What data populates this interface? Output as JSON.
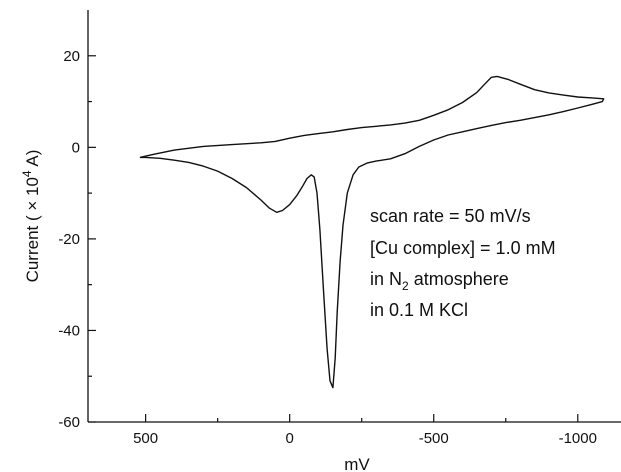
{
  "chart_data": {
    "type": "line",
    "title": "",
    "xlabel": "mV",
    "ylabel": {
      "prefix": "Current ( × 10",
      "exponent": "4",
      "suffix": " A)"
    },
    "xlim": [
      700,
      -1150
    ],
    "ylim": [
      -60,
      30
    ],
    "x_reversed": true,
    "x_ticks": [
      500,
      0,
      -500,
      -1000
    ],
    "x_minor_ticks": [
      750,
      250,
      -250,
      -750
    ],
    "y_ticks": [
      20,
      0,
      -20,
      -40,
      -60
    ],
    "y_minor_ticks": [
      10,
      -10,
      -30,
      -50
    ],
    "grid": false,
    "line_color": "#111111",
    "series": [
      {
        "points": [
          [
            520,
            -2.2
          ],
          [
            470,
            -1.5
          ],
          [
            400,
            -0.6
          ],
          [
            300,
            0.2
          ],
          [
            200,
            0.6
          ],
          [
            100,
            1.0
          ],
          [
            50,
            1.3
          ],
          [
            0,
            2.0
          ],
          [
            -50,
            2.6
          ],
          [
            -100,
            3.0
          ],
          [
            -150,
            3.4
          ],
          [
            -200,
            3.9
          ],
          [
            -250,
            4.3
          ],
          [
            -300,
            4.6
          ],
          [
            -350,
            4.9
          ],
          [
            -400,
            5.3
          ],
          [
            -450,
            5.9
          ],
          [
            -500,
            7.0
          ],
          [
            -550,
            8.2
          ],
          [
            -600,
            9.8
          ],
          [
            -650,
            12.0
          ],
          [
            -680,
            14.0
          ],
          [
            -700,
            15.3
          ],
          [
            -720,
            15.5
          ],
          [
            -760,
            14.8
          ],
          [
            -800,
            13.8
          ],
          [
            -850,
            12.6
          ],
          [
            -900,
            11.9
          ],
          [
            -950,
            11.4
          ],
          [
            -1000,
            11.0
          ],
          [
            -1050,
            10.8
          ],
          [
            -1090,
            10.6
          ],
          [
            -1085,
            10.0
          ],
          [
            -1050,
            9.4
          ],
          [
            -1000,
            8.6
          ],
          [
            -950,
            7.8
          ],
          [
            -900,
            7.1
          ],
          [
            -850,
            6.5
          ],
          [
            -800,
            5.9
          ],
          [
            -750,
            5.4
          ],
          [
            -700,
            4.8
          ],
          [
            -650,
            4.1
          ],
          [
            -600,
            3.4
          ],
          [
            -550,
            2.7
          ],
          [
            -500,
            1.6
          ],
          [
            -450,
            0.2
          ],
          [
            -400,
            -1.4
          ],
          [
            -350,
            -2.5
          ],
          [
            -300,
            -3.0
          ],
          [
            -270,
            -3.4
          ],
          [
            -240,
            -4.3
          ],
          [
            -220,
            -6.0
          ],
          [
            -200,
            -10.0
          ],
          [
            -185,
            -17.0
          ],
          [
            -175,
            -25.0
          ],
          [
            -165,
            -36.0
          ],
          [
            -158,
            -46.0
          ],
          [
            -150,
            -52.5
          ],
          [
            -140,
            -51.0
          ],
          [
            -130,
            -44.0
          ],
          [
            -118,
            -32.0
          ],
          [
            -105,
            -18.0
          ],
          [
            -95,
            -10.0
          ],
          [
            -85,
            -6.5
          ],
          [
            -75,
            -6.0
          ],
          [
            -60,
            -6.8
          ],
          [
            -45,
            -8.5
          ],
          [
            -25,
            -10.5
          ],
          [
            0,
            -12.5
          ],
          [
            25,
            -13.8
          ],
          [
            45,
            -14.2
          ],
          [
            70,
            -13.3
          ],
          [
            100,
            -11.5
          ],
          [
            150,
            -8.8
          ],
          [
            200,
            -6.8
          ],
          [
            250,
            -5.2
          ],
          [
            300,
            -4.1
          ],
          [
            350,
            -3.3
          ],
          [
            400,
            -2.8
          ],
          [
            450,
            -2.4
          ],
          [
            500,
            -2.2
          ],
          [
            520,
            -2.2
          ]
        ]
      }
    ],
    "annotations": {
      "line1": "scan rate = 50 mV/s",
      "line2": "[Cu complex] = 1.0 mM",
      "line3_prefix": "in N",
      "line3_sub": "2",
      "line3_suffix": " atmosphere",
      "line4": "in 0.1 M KCl"
    }
  }
}
